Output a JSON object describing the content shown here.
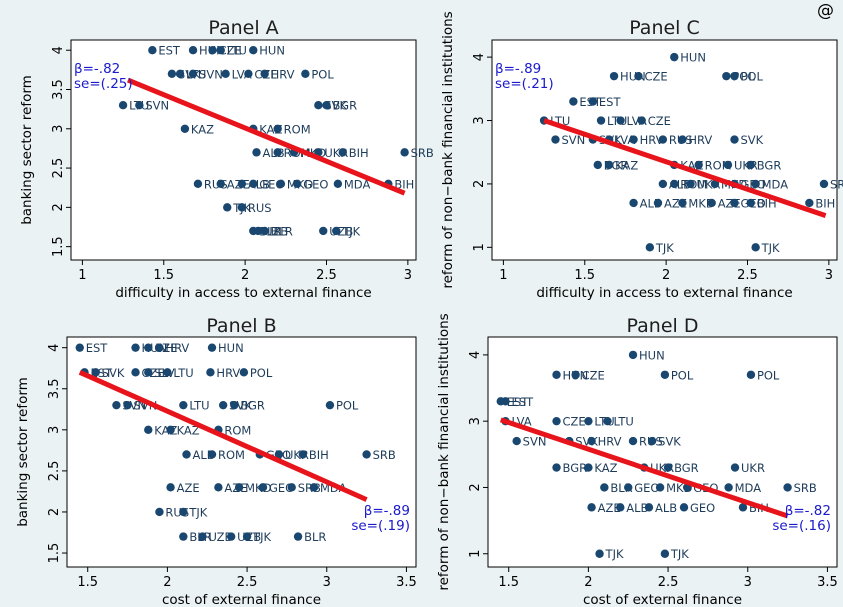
{
  "figure": {
    "corner_mark": "@",
    "background": "#eaf2f3",
    "panel_bg": "#ffffff",
    "point_color": "#1a476f",
    "line_color": "#e8141b",
    "beta_color": "#1a1acc"
  },
  "chart_data": [
    {
      "type": "scatter",
      "title": "Panel A",
      "xlabel": "difficulty in access to external finance",
      "ylabel": "banking sector reform",
      "xlim": [
        0.93,
        3.05
      ],
      "ylim": [
        1.33,
        4.13
      ],
      "xticks": [
        1,
        1.5,
        2,
        2.5,
        3
      ],
      "yticks": [
        1.5,
        2,
        2.5,
        3,
        3.5,
        4
      ],
      "xtick_labels": [
        "1",
        "1.5",
        "2",
        "2.5",
        "3"
      ],
      "ytick_labels": [
        "1.5",
        "2",
        "2.5",
        "3",
        "3.5",
        "4"
      ],
      "fit": {
        "x": [
          1.28,
          2.98
        ],
        "y": [
          3.62,
          2.18
        ]
      },
      "beta": "β=-.82",
      "se": "se=(.25)",
      "beta_pos": "top-left",
      "points": [
        {
          "x": 1.43,
          "y": 4.0,
          "label": "EST"
        },
        {
          "x": 1.68,
          "y": 4.0,
          "label": "HUN"
        },
        {
          "x": 1.8,
          "y": 4.0,
          "label": "CZE"
        },
        {
          "x": 1.85,
          "y": 4.0,
          "label": "LTU"
        },
        {
          "x": 2.05,
          "y": 4.0,
          "label": "HUN"
        },
        {
          "x": 1.55,
          "y": 3.7,
          "label": "SVK"
        },
        {
          "x": 1.6,
          "y": 3.7,
          "label": "LTU"
        },
        {
          "x": 1.68,
          "y": 3.7,
          "label": "SVN"
        },
        {
          "x": 1.88,
          "y": 3.7,
          "label": "LVA"
        },
        {
          "x": 2.02,
          "y": 3.7,
          "label": "CZE"
        },
        {
          "x": 2.12,
          "y": 3.7,
          "label": "HRV"
        },
        {
          "x": 2.37,
          "y": 3.7,
          "label": "POL"
        },
        {
          "x": 1.25,
          "y": 3.3,
          "label": "LTU"
        },
        {
          "x": 1.35,
          "y": 3.3,
          "label": "SVN"
        },
        {
          "x": 2.45,
          "y": 3.3,
          "label": "SVK"
        },
        {
          "x": 2.5,
          "y": 3.3,
          "label": "BGR"
        },
        {
          "x": 1.63,
          "y": 3.0,
          "label": "KAZ"
        },
        {
          "x": 2.05,
          "y": 3.0,
          "label": "KAZ"
        },
        {
          "x": 2.2,
          "y": 3.0,
          "label": "ROM"
        },
        {
          "x": 2.07,
          "y": 2.7,
          "label": "ALB"
        },
        {
          "x": 2.2,
          "y": 2.7,
          "label": "ROM"
        },
        {
          "x": 2.3,
          "y": 2.7,
          "label": "MKD"
        },
        {
          "x": 2.45,
          "y": 2.7,
          "label": "UKR"
        },
        {
          "x": 2.6,
          "y": 2.7,
          "label": "BIH"
        },
        {
          "x": 2.98,
          "y": 2.7,
          "label": "SRB"
        },
        {
          "x": 1.71,
          "y": 2.3,
          "label": "RUS"
        },
        {
          "x": 1.85,
          "y": 2.3,
          "label": "AZE"
        },
        {
          "x": 1.98,
          "y": 2.3,
          "label": "ALB"
        },
        {
          "x": 2.05,
          "y": 2.3,
          "label": "GEO"
        },
        {
          "x": 2.22,
          "y": 2.3,
          "label": "MKD"
        },
        {
          "x": 2.32,
          "y": 2.3,
          "label": "GEO"
        },
        {
          "x": 2.57,
          "y": 2.3,
          "label": "MDA"
        },
        {
          "x": 2.88,
          "y": 2.3,
          "label": "BIH"
        },
        {
          "x": 1.89,
          "y": 2.0,
          "label": "TJK"
        },
        {
          "x": 1.98,
          "y": 2.0,
          "label": "RUS"
        },
        {
          "x": 2.05,
          "y": 1.7,
          "label": "BLR"
        },
        {
          "x": 2.08,
          "y": 1.7,
          "label": "UZB"
        },
        {
          "x": 2.12,
          "y": 1.7,
          "label": "BLR"
        },
        {
          "x": 2.48,
          "y": 1.7,
          "label": "UZB"
        },
        {
          "x": 2.56,
          "y": 1.7,
          "label": "TJK"
        }
      ]
    },
    {
      "type": "scatter",
      "title": "Panel C",
      "xlabel": "difficulty in access to external finance",
      "ylabel": "reform of non−bank financial institutions",
      "xlim": [
        0.93,
        3.05
      ],
      "ylim": [
        0.8,
        4.27
      ],
      "xticks": [
        1,
        1.5,
        2,
        2.5,
        3
      ],
      "yticks": [
        1,
        2,
        3,
        4
      ],
      "xtick_labels": [
        "1",
        "1.5",
        "2",
        "2.5",
        "3"
      ],
      "ytick_labels": [
        "1",
        "2",
        "3",
        "4"
      ],
      "fit": {
        "x": [
          1.25,
          2.98
        ],
        "y": [
          3.0,
          1.5
        ]
      },
      "beta": "β=-.89",
      "se": "se=(.21)",
      "beta_pos": "top-left",
      "points": [
        {
          "x": 2.05,
          "y": 4.0,
          "label": "HUN"
        },
        {
          "x": 1.68,
          "y": 3.7,
          "label": "HUN"
        },
        {
          "x": 1.83,
          "y": 3.7,
          "label": "CZE"
        },
        {
          "x": 2.37,
          "y": 3.7,
          "label": "POL"
        },
        {
          "x": 2.42,
          "y": 3.7,
          "label": "POL"
        },
        {
          "x": 1.43,
          "y": 3.3,
          "label": "EST"
        },
        {
          "x": 1.55,
          "y": 3.3,
          "label": "EST"
        },
        {
          "x": 1.25,
          "y": 3.0,
          "label": "LTU"
        },
        {
          "x": 1.6,
          "y": 3.0,
          "label": "LTU"
        },
        {
          "x": 1.72,
          "y": 3.0,
          "label": "LVA"
        },
        {
          "x": 1.85,
          "y": 3.0,
          "label": "CZE"
        },
        {
          "x": 1.32,
          "y": 2.7,
          "label": "SVN"
        },
        {
          "x": 1.55,
          "y": 2.7,
          "label": "SVK"
        },
        {
          "x": 1.65,
          "y": 2.7,
          "label": "LVA"
        },
        {
          "x": 1.8,
          "y": 2.7,
          "label": "HRV"
        },
        {
          "x": 1.98,
          "y": 2.7,
          "label": "RUS"
        },
        {
          "x": 2.1,
          "y": 2.7,
          "label": "HRV"
        },
        {
          "x": 2.42,
          "y": 2.7,
          "label": "SVK"
        },
        {
          "x": 1.58,
          "y": 2.3,
          "label": "BGR"
        },
        {
          "x": 1.65,
          "y": 2.3,
          "label": "KAZ"
        },
        {
          "x": 2.05,
          "y": 2.3,
          "label": "KAZ"
        },
        {
          "x": 2.2,
          "y": 2.3,
          "label": "ROM"
        },
        {
          "x": 2.38,
          "y": 2.3,
          "label": "UKR"
        },
        {
          "x": 2.52,
          "y": 2.3,
          "label": "BGR"
        },
        {
          "x": 1.98,
          "y": 2.0,
          "label": "ALB"
        },
        {
          "x": 2.05,
          "y": 2.0,
          "label": "ROM"
        },
        {
          "x": 2.15,
          "y": 2.0,
          "label": "UKR"
        },
        {
          "x": 2.3,
          "y": 2.0,
          "label": "MKD"
        },
        {
          "x": 2.42,
          "y": 2.0,
          "label": "GEO"
        },
        {
          "x": 2.55,
          "y": 2.0,
          "label": "MDA"
        },
        {
          "x": 2.97,
          "y": 2.0,
          "label": "SRB"
        },
        {
          "x": 1.8,
          "y": 1.7,
          "label": "ALB"
        },
        {
          "x": 1.95,
          "y": 1.7,
          "label": "AZE"
        },
        {
          "x": 2.1,
          "y": 1.7,
          "label": "MKD"
        },
        {
          "x": 2.28,
          "y": 1.7,
          "label": "AZE"
        },
        {
          "x": 2.42,
          "y": 1.7,
          "label": "GEO"
        },
        {
          "x": 2.52,
          "y": 1.7,
          "label": "BIH"
        },
        {
          "x": 2.88,
          "y": 1.7,
          "label": "BIH"
        },
        {
          "x": 1.9,
          "y": 1.0,
          "label": "TJK"
        },
        {
          "x": 2.55,
          "y": 1.0,
          "label": "TJK"
        }
      ]
    },
    {
      "type": "scatter",
      "title": "Panel B",
      "xlabel": "cost of external finance",
      "ylabel": "banking sector reform",
      "xlim": [
        1.37,
        3.56
      ],
      "ylim": [
        1.33,
        4.13
      ],
      "xticks": [
        1.5,
        2,
        2.5,
        3,
        3.5
      ],
      "yticks": [
        1.5,
        2,
        2.5,
        3,
        3.5,
        4
      ],
      "xtick_labels": [
        "1.5",
        "2",
        "2.5",
        "3",
        "3.5"
      ],
      "ytick_labels": [
        "1.5",
        "2",
        "2.5",
        "3",
        "3.5",
        "4"
      ],
      "fit": {
        "x": [
          1.45,
          3.25
        ],
        "y": [
          3.7,
          2.15
        ]
      },
      "beta": "β=-.89",
      "se": "se=(.19)",
      "beta_pos": "bottom-right",
      "points": [
        {
          "x": 1.45,
          "y": 4.0,
          "label": "EST"
        },
        {
          "x": 1.8,
          "y": 4.0,
          "label": "HUN"
        },
        {
          "x": 1.88,
          "y": 4.0,
          "label": "CZE"
        },
        {
          "x": 1.95,
          "y": 4.0,
          "label": "HRV"
        },
        {
          "x": 2.28,
          "y": 4.0,
          "label": "HUN"
        },
        {
          "x": 1.48,
          "y": 3.7,
          "label": "EST"
        },
        {
          "x": 1.55,
          "y": 3.7,
          "label": "SVK"
        },
        {
          "x": 1.8,
          "y": 3.7,
          "label": "CZE"
        },
        {
          "x": 1.88,
          "y": 3.7,
          "label": "SLV"
        },
        {
          "x": 2.0,
          "y": 3.7,
          "label": "LTU"
        },
        {
          "x": 2.27,
          "y": 3.7,
          "label": "HRV"
        },
        {
          "x": 2.48,
          "y": 3.7,
          "label": "POL"
        },
        {
          "x": 1.68,
          "y": 3.3,
          "label": "SVN"
        },
        {
          "x": 1.75,
          "y": 3.3,
          "label": "SVN"
        },
        {
          "x": 2.1,
          "y": 3.3,
          "label": "LTU"
        },
        {
          "x": 2.35,
          "y": 3.3,
          "label": "SVK"
        },
        {
          "x": 2.42,
          "y": 3.3,
          "label": "BGR"
        },
        {
          "x": 3.02,
          "y": 3.3,
          "label": "POL"
        },
        {
          "x": 1.88,
          "y": 3.0,
          "label": "KAZ"
        },
        {
          "x": 2.02,
          "y": 3.0,
          "label": "KAZ"
        },
        {
          "x": 2.32,
          "y": 3.0,
          "label": "ROM"
        },
        {
          "x": 2.12,
          "y": 2.7,
          "label": "ALB"
        },
        {
          "x": 2.28,
          "y": 2.7,
          "label": "ROM"
        },
        {
          "x": 2.58,
          "y": 2.7,
          "label": "GEO"
        },
        {
          "x": 2.7,
          "y": 2.7,
          "label": "UKR"
        },
        {
          "x": 2.85,
          "y": 2.7,
          "label": "BIH"
        },
        {
          "x": 3.25,
          "y": 2.7,
          "label": "SRB"
        },
        {
          "x": 2.02,
          "y": 2.3,
          "label": "AZE"
        },
        {
          "x": 2.32,
          "y": 2.3,
          "label": "AZE"
        },
        {
          "x": 2.45,
          "y": 2.3,
          "label": "MKD"
        },
        {
          "x": 2.6,
          "y": 2.3,
          "label": "GEO"
        },
        {
          "x": 2.78,
          "y": 2.3,
          "label": "SRB"
        },
        {
          "x": 2.92,
          "y": 2.3,
          "label": "MDA"
        },
        {
          "x": 1.95,
          "y": 2.0,
          "label": "RUS"
        },
        {
          "x": 2.1,
          "y": 2.0,
          "label": "TJK"
        },
        {
          "x": 2.1,
          "y": 1.7,
          "label": "BLR"
        },
        {
          "x": 2.22,
          "y": 1.7,
          "label": "UZB"
        },
        {
          "x": 2.4,
          "y": 1.7,
          "label": "UZB"
        },
        {
          "x": 2.5,
          "y": 1.7,
          "label": "TJK"
        },
        {
          "x": 2.82,
          "y": 1.7,
          "label": "BLR"
        }
      ]
    },
    {
      "type": "scatter",
      "title": "Panel D",
      "xlabel": "cost of external finance",
      "ylabel": "reform of non−bank financial institutions",
      "xlim": [
        1.37,
        3.56
      ],
      "ylim": [
        0.8,
        4.27
      ],
      "xticks": [
        1.5,
        2,
        2.5,
        3,
        3.5
      ],
      "yticks": [
        1,
        2,
        3,
        4
      ],
      "xtick_labels": [
        "1.5",
        "2",
        "2.5",
        "3",
        "3.5"
      ],
      "ytick_labels": [
        "1",
        "2",
        "3",
        "4"
      ],
      "fit": {
        "x": [
          1.45,
          3.25
        ],
        "y": [
          3.02,
          1.57
        ]
      },
      "beta": "β=-.82",
      "se": "se=(.16)",
      "beta_pos": "bottom-right",
      "points": [
        {
          "x": 2.28,
          "y": 4.0,
          "label": "HUN"
        },
        {
          "x": 1.8,
          "y": 3.7,
          "label": "HUN"
        },
        {
          "x": 1.92,
          "y": 3.7,
          "label": "CZE"
        },
        {
          "x": 2.48,
          "y": 3.7,
          "label": "POL"
        },
        {
          "x": 3.02,
          "y": 3.7,
          "label": "POL"
        },
        {
          "x": 1.45,
          "y": 3.3,
          "label": "EST"
        },
        {
          "x": 1.48,
          "y": 3.3,
          "label": "EST"
        },
        {
          "x": 1.48,
          "y": 3.0,
          "label": "LVA"
        },
        {
          "x": 1.8,
          "y": 3.0,
          "label": "CZE"
        },
        {
          "x": 2.0,
          "y": 3.0,
          "label": "LTU"
        },
        {
          "x": 2.12,
          "y": 3.0,
          "label": "LTU"
        },
        {
          "x": 1.55,
          "y": 2.7,
          "label": "SVN"
        },
        {
          "x": 1.88,
          "y": 2.7,
          "label": "SVK"
        },
        {
          "x": 2.02,
          "y": 2.7,
          "label": "HRV"
        },
        {
          "x": 2.28,
          "y": 2.7,
          "label": "RUS"
        },
        {
          "x": 2.4,
          "y": 2.7,
          "label": "SVK"
        },
        {
          "x": 1.8,
          "y": 2.3,
          "label": "BGR"
        },
        {
          "x": 2.0,
          "y": 2.3,
          "label": "KAZ"
        },
        {
          "x": 2.35,
          "y": 2.3,
          "label": "UKR"
        },
        {
          "x": 2.5,
          "y": 2.3,
          "label": "BGR"
        },
        {
          "x": 2.92,
          "y": 2.3,
          "label": "UKR"
        },
        {
          "x": 2.1,
          "y": 2.0,
          "label": "BLR"
        },
        {
          "x": 2.25,
          "y": 2.0,
          "label": "GEO"
        },
        {
          "x": 2.45,
          "y": 2.0,
          "label": "MKD"
        },
        {
          "x": 2.62,
          "y": 2.0,
          "label": "GEO"
        },
        {
          "x": 2.88,
          "y": 2.0,
          "label": "MDA"
        },
        {
          "x": 3.25,
          "y": 2.0,
          "label": "SRB"
        },
        {
          "x": 2.02,
          "y": 1.7,
          "label": "AZE"
        },
        {
          "x": 2.2,
          "y": 1.7,
          "label": "ALB"
        },
        {
          "x": 2.38,
          "y": 1.7,
          "label": "ALB"
        },
        {
          "x": 2.6,
          "y": 1.7,
          "label": "GEO"
        },
        {
          "x": 2.97,
          "y": 1.7,
          "label": "BIH"
        },
        {
          "x": 2.07,
          "y": 1.0,
          "label": "TJK"
        },
        {
          "x": 2.48,
          "y": 1.0,
          "label": "TJK"
        }
      ]
    }
  ]
}
